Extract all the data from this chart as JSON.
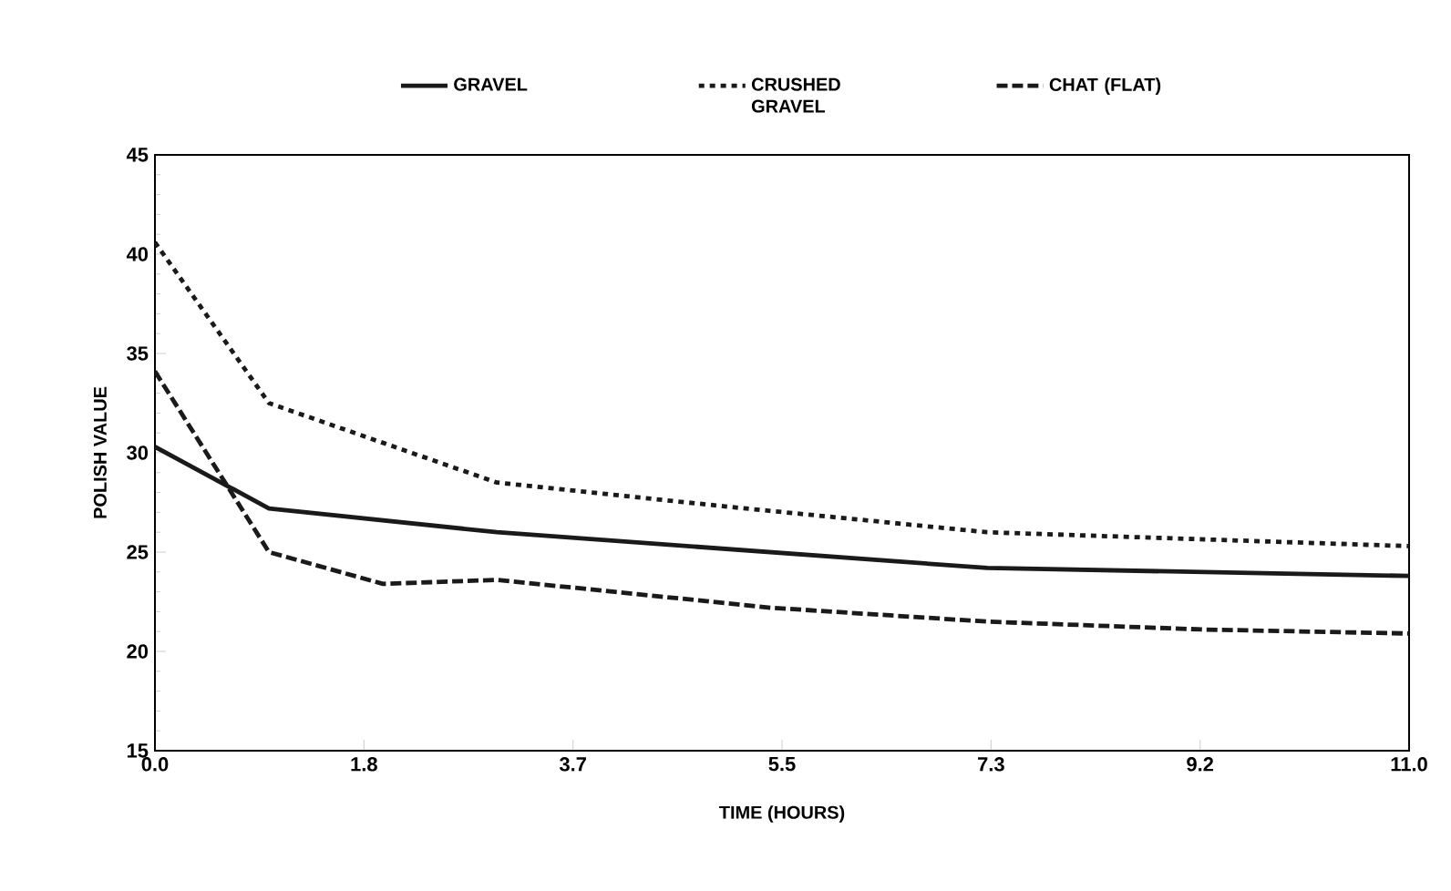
{
  "chart_data": {
    "type": "line",
    "xlabel": "TIME (HOURS)",
    "ylabel": "POLISH VALUE",
    "xlim": [
      0,
      11
    ],
    "ylim": [
      15,
      45
    ],
    "xticks": [
      {
        "value": 0,
        "label": "0.0"
      },
      {
        "value": 1.8333,
        "label": "1.8"
      },
      {
        "value": 3.6667,
        "label": "3.7"
      },
      {
        "value": 5.5,
        "label": "5.5"
      },
      {
        "value": 7.3333,
        "label": "7.3"
      },
      {
        "value": 9.1667,
        "label": "9.2"
      },
      {
        "value": 11,
        "label": "11.0"
      }
    ],
    "yticks": [
      15,
      20,
      25,
      30,
      35,
      40,
      45
    ],
    "legend": "top",
    "grid": false,
    "marker": "none",
    "series": [
      {
        "name": "GRAVEL",
        "color": "#1a1a1a",
        "line_style": "solid",
        "x": [
          0,
          1,
          3,
          7.3,
          11
        ],
        "values": [
          30.3,
          27.2,
          26.0,
          24.2,
          23.8
        ]
      },
      {
        "name": "CRUSHED GRAVEL",
        "color": "#1a1a1a",
        "line_style": "dotted",
        "x": [
          0,
          1,
          3,
          5,
          7.3,
          11
        ],
        "values": [
          40.6,
          32.5,
          28.5,
          27.3,
          26.0,
          25.3
        ]
      },
      {
        "name": "CHAT (FLAT)",
        "color": "#1a1a1a",
        "line_style": "dashed",
        "x": [
          0,
          1,
          2,
          3,
          5.4,
          7.3,
          9.2,
          11
        ],
        "values": [
          34.1,
          25.0,
          23.4,
          23.6,
          22.2,
          21.5,
          21.1,
          20.9
        ]
      }
    ]
  }
}
